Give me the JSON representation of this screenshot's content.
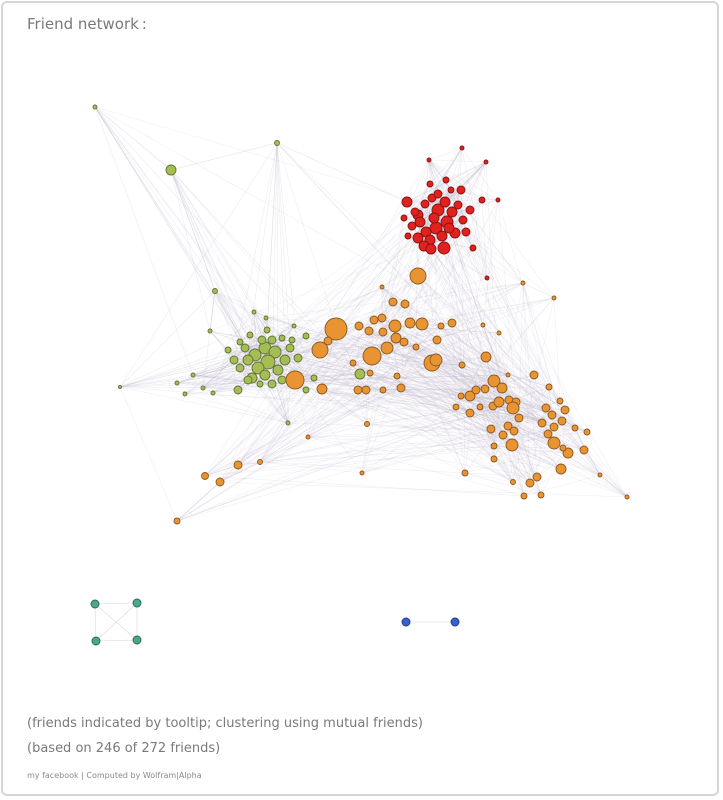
{
  "title": "Friend network :",
  "notes": {
    "tooltip_note": "(friends indicated by tooltip; clustering using mutual friends)",
    "count_note": "(based on 246 of 272 friends)"
  },
  "footer": "my facebook | Computed by Wolfram|Alpha",
  "colors": {
    "red_cluster": "#e0211d",
    "orange_cluster": "#e89433",
    "green_cluster": "#a4be55",
    "teal_cluster": "#4aa88a",
    "blue_cluster": "#3a5fd0",
    "edge": "#b9b0c8"
  },
  "clusters": [
    {
      "id": "red",
      "color": "#e0211d"
    },
    {
      "id": "orange",
      "color": "#e89433"
    },
    {
      "id": "green",
      "color": "#a4be55"
    },
    {
      "id": "teal",
      "color": "#4aa88a"
    },
    {
      "id": "blue",
      "color": "#3a5fd0"
    }
  ]
}
